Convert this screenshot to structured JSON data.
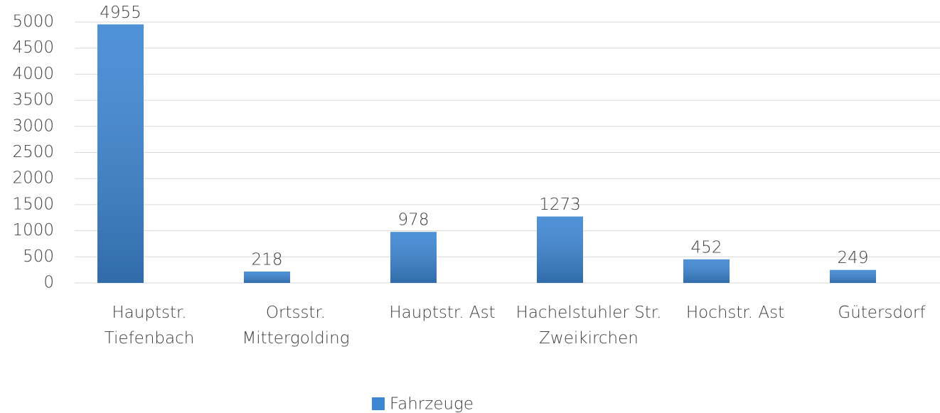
{
  "chart_data": {
    "type": "bar",
    "categories": [
      "Hauptstr. Tiefenbach",
      "Ortsstr. Mittergolding",
      "Hauptstr. Ast",
      "Hachelstuhler Str. Zweikirchen",
      "Hochstr. Ast",
      "Gütersdorf"
    ],
    "series": [
      {
        "name": "Fahrzeuge",
        "color": "#3d86d3",
        "values": [
          4955,
          218,
          978,
          1273,
          452,
          249
        ]
      }
    ],
    "ylim": [
      0,
      5000
    ],
    "yticks": [
      0,
      500,
      1000,
      1500,
      2000,
      2500,
      3000,
      3500,
      4000,
      4500,
      5000
    ],
    "grid": true,
    "legend": "bottom"
  }
}
